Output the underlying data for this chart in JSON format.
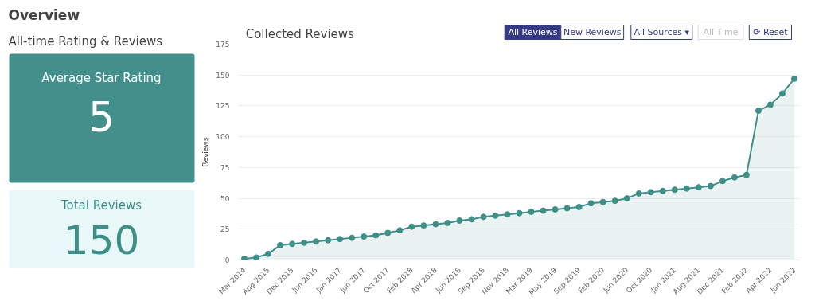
{
  "chart_data": [
    {
      "type": "other",
      "title": "Overview",
      "subtitle": "All-time Rating & Reviews",
      "annotations": [
        "Average Star Rating",
        "5",
        "Total Reviews",
        "150"
      ],
      "colors": [
        "#428f8b",
        "#e8f7f8"
      ]
    },
    {
      "type": "area",
      "title": "Collected Reviews",
      "ylabel": "Reviews",
      "annotations": [
        "All Reviews",
        "New Reviews",
        "All Sources ▾",
        "All Time",
        "⟳ Reset"
      ],
      "categories": [
        "Mar 2014",
        null,
        "Aug 2015",
        null,
        "Dec 2015",
        null,
        "Jun 2016",
        null,
        "Jan 2017",
        null,
        "Jun 2017",
        null,
        "Oct 2017",
        null,
        "Feb 2018",
        null,
        "Apr 2018",
        null,
        "Jun 2018",
        null,
        "Sep 2018",
        null,
        "Nov 2018",
        null,
        "Mar 2019",
        null,
        "May 2019",
        null,
        "Sep 2019",
        null,
        "Feb 2020",
        null,
        "Jun 2020",
        null,
        "Oct 2020",
        null,
        "Jan 2021",
        null,
        "Aug 2021",
        null,
        "Dec 2021",
        null,
        "Feb 2022",
        null,
        "Apr 2022",
        null,
        "Jun 2022"
      ],
      "series": [
        {
          "color": "#3d8f87",
          "values": [
            1,
            2,
            5,
            12,
            13,
            14,
            15,
            16,
            17,
            18,
            19,
            20,
            22,
            24,
            27,
            28,
            29,
            30,
            32,
            33,
            35,
            36,
            37,
            38,
            39,
            40,
            41,
            42,
            43,
            46,
            47,
            48,
            50,
            54,
            55,
            56,
            57,
            58,
            59,
            60,
            64,
            67,
            69,
            121,
            126,
            135,
            147
          ]
        }
      ],
      "ylim": [
        0,
        175
      ],
      "yticks": [
        0,
        25,
        50,
        75,
        100,
        125,
        150,
        175
      ],
      "grid": "y",
      "marker": "circle"
    }
  ]
}
